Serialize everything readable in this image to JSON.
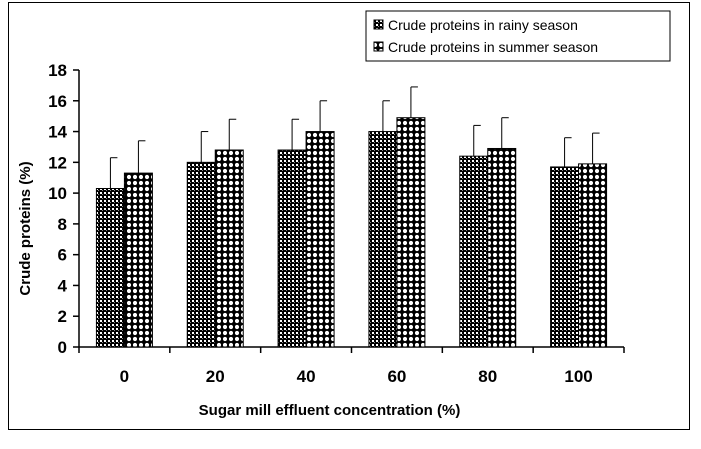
{
  "chart_data": {
    "type": "bar",
    "categories": [
      "0",
      "20",
      "40",
      "60",
      "80",
      "100"
    ],
    "series": [
      {
        "name": "Crude proteins in rainy season",
        "values": [
          10.3,
          12.0,
          12.8,
          14.0,
          12.4,
          11.7
        ],
        "errors": [
          2.0,
          2.0,
          2.0,
          2.0,
          2.0,
          1.9
        ],
        "pattern": "dense-check",
        "color": "#000000"
      },
      {
        "name": "Crude proteins in summer season",
        "values": [
          11.3,
          12.8,
          14.0,
          14.9,
          12.9,
          11.9
        ],
        "errors": [
          2.1,
          2.0,
          2.0,
          2.0,
          2.0,
          2.0
        ],
        "pattern": "open-circles",
        "color": "#000000"
      }
    ],
    "xlabel": "Sugar mill effluent concentration (%)",
    "ylabel": "Crude proteins (%)",
    "ylim": [
      0,
      18
    ],
    "yticks": [
      "0",
      "2",
      "4",
      "6",
      "8",
      "10",
      "12",
      "14",
      "16",
      "18"
    ],
    "grid": false,
    "legend_position": "top-right",
    "error_bars": true
  }
}
